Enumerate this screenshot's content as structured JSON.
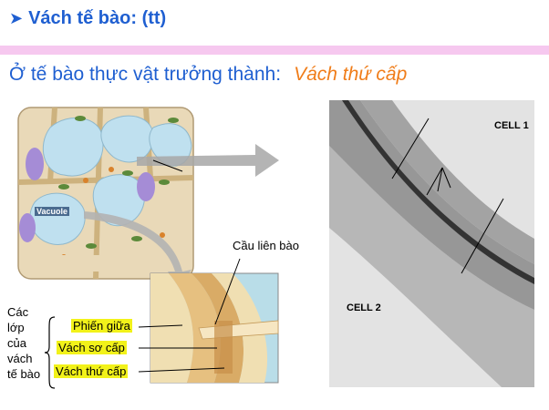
{
  "slide": {
    "bullet_icon": "arrow-bullet-icon",
    "title": "Vách tế bào: (tt)",
    "subtitle_main": "Ở tế bào thực vật trưởng thành:",
    "subtitle_accent": "Vách thứ cấp",
    "colors": {
      "title": "#1f5fd1",
      "accent": "#f07d1a",
      "band": "#f6c8ef",
      "highlight": "#f2f21a"
    }
  },
  "figure": {
    "vacuole_label": "Vacuole",
    "plasmodesma_label": "Cầu liên bào",
    "layers_caption": [
      "Các",
      "lớp",
      "của",
      "vách",
      "tế bào"
    ],
    "layer_labels": [
      "Phiến giữa",
      "Vách sơ cấp",
      "Vách thứ cấp"
    ],
    "micro_cell1": "CELL 1",
    "micro_cell2": "CELL 2"
  }
}
